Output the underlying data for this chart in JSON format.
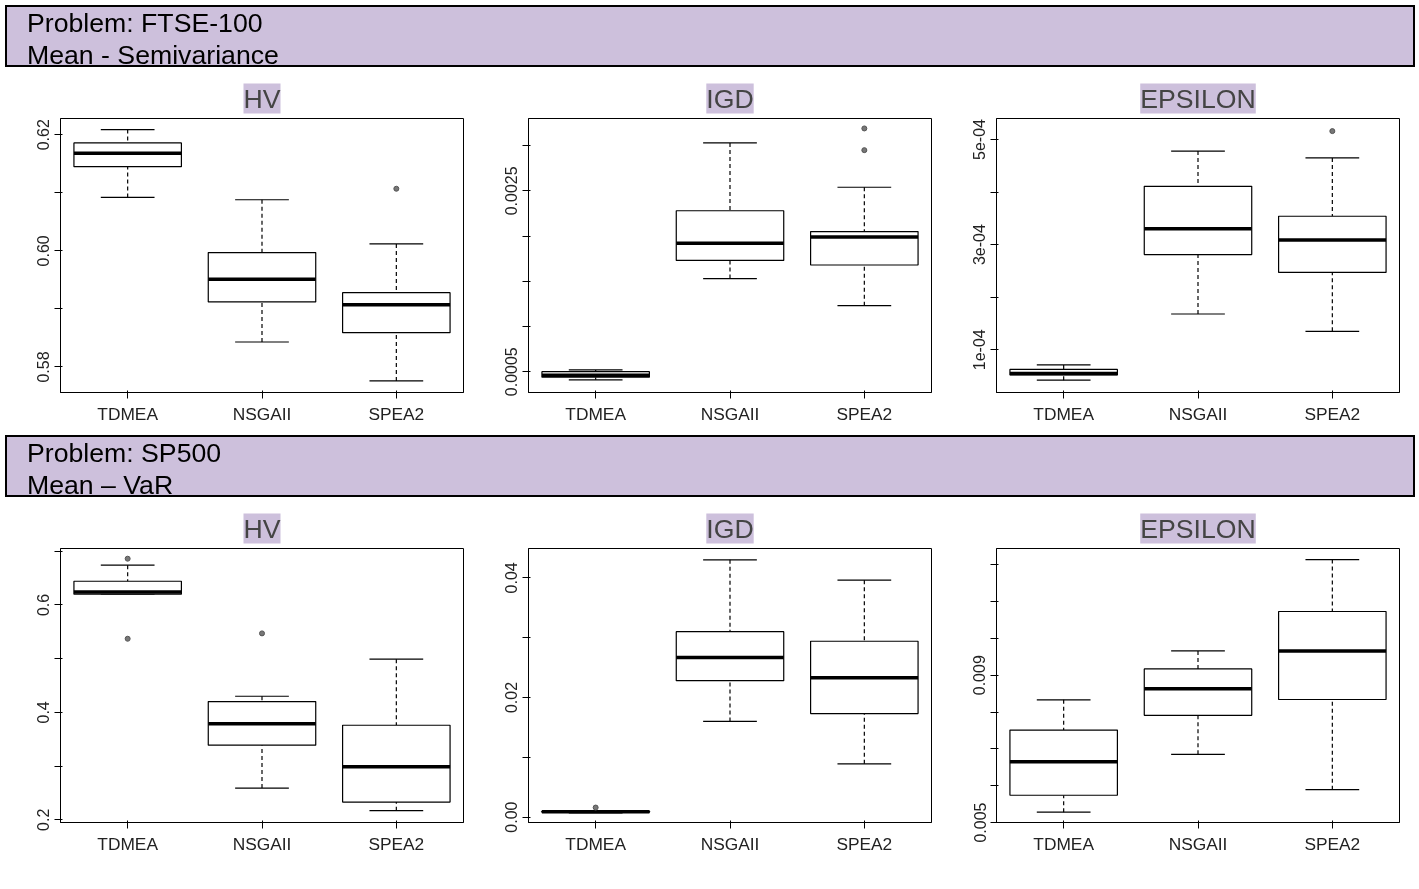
{
  "chart_data": [
    {
      "type": "box",
      "title": "HV",
      "annotations": [
        "Problem: FTSE-100",
        "Mean - Semivariance"
      ],
      "categories": [
        "TDMEA",
        "NSGAII",
        "SPEA2"
      ],
      "ylim": [
        0.5756,
        0.6228
      ],
      "yticks": [
        {
          "value": 0.58,
          "label": "0.58"
        },
        {
          "value": 0.59,
          "label": null
        },
        {
          "value": 0.6,
          "label": "0.60"
        },
        {
          "value": 0.61,
          "label": null
        },
        {
          "value": 0.62,
          "label": "0.62"
        }
      ],
      "boxes": [
        {
          "low": 0.6092,
          "q1": 0.6145,
          "median": 0.6168,
          "q3": 0.6186,
          "high": 0.6209
        },
        {
          "low": 0.5843,
          "q1": 0.5912,
          "median": 0.5951,
          "q3": 0.5997,
          "high": 0.6088
        },
        {
          "low": 0.5776,
          "q1": 0.5859,
          "median": 0.5907,
          "q3": 0.5928,
          "high": 0.6012,
          "outliers": [
            0.6107
          ]
        }
      ]
    },
    {
      "type": "box",
      "title": "IGD",
      "categories": [
        "TDMEA",
        "NSGAII",
        "SPEA2"
      ],
      "ylim": [
        0.00027,
        0.0033
      ],
      "yticks": [
        {
          "value": 0.0005,
          "label": "0.0005"
        },
        {
          "value": 0.001,
          "label": null
        },
        {
          "value": 0.0015,
          "label": null
        },
        {
          "value": 0.002,
          "label": null
        },
        {
          "value": 0.0025,
          "label": "0.0025"
        },
        {
          "value": 0.003,
          "label": null
        }
      ],
      "boxes": [
        {
          "low": 0.00041,
          "q1": 0.00044,
          "median": 0.00046,
          "q3": 0.0005,
          "high": 0.00052
        },
        {
          "low": 0.00153,
          "q1": 0.00173,
          "median": 0.00192,
          "q3": 0.00228,
          "high": 0.00303
        },
        {
          "low": 0.00123,
          "q1": 0.00168,
          "median": 0.00199,
          "q3": 0.00205,
          "high": 0.00254,
          "outliers": [
            0.00295,
            0.00319
          ]
        }
      ]
    },
    {
      "type": "box",
      "title": "EPSILON",
      "categories": [
        "TDMEA",
        "NSGAII",
        "SPEA2"
      ],
      "ylim": [
        1.86e-05,
        0.00054
      ],
      "yticks": [
        {
          "value": 0.0001,
          "label": "1e-04"
        },
        {
          "value": 0.0002,
          "label": null
        },
        {
          "value": 0.0003,
          "label": "3e-04"
        },
        {
          "value": 0.0004,
          "label": null
        },
        {
          "value": 0.0005,
          "label": "5e-04"
        }
      ],
      "boxes": [
        {
          "low": 4.2e-05,
          "q1": 5.2e-05,
          "median": 5.46e-05,
          "q3": 6.25e-05,
          "high": 7.1e-05
        },
        {
          "low": 0.000168,
          "q1": 0.000281,
          "median": 0.00033,
          "q3": 0.000411,
          "high": 0.000478
        },
        {
          "low": 0.000135,
          "q1": 0.000247,
          "median": 0.000309,
          "q3": 0.000354,
          "high": 0.000465,
          "outliers": [
            0.000516
          ]
        }
      ]
    },
    {
      "type": "box",
      "title": "HV",
      "annotations": [
        "Problem: SP500",
        "Mean – VaR"
      ],
      "categories": [
        "TDMEA",
        "NSGAII",
        "SPEA2"
      ],
      "ylim": [
        0.195,
        0.705
      ],
      "yticks": [
        {
          "value": 0.2,
          "label": "0.2"
        },
        {
          "value": 0.3,
          "label": null
        },
        {
          "value": 0.4,
          "label": "0.4"
        },
        {
          "value": 0.5,
          "label": null
        },
        {
          "value": 0.6,
          "label": "0.6"
        },
        {
          "value": 0.7,
          "label": null
        }
      ],
      "boxes": [
        {
          "low": 0.62,
          "q1": 0.62,
          "median": 0.624,
          "q3": 0.644,
          "high": 0.674,
          "outliers": [
            0.537,
            0.686
          ]
        },
        {
          "low": 0.259,
          "q1": 0.339,
          "median": 0.379,
          "q3": 0.42,
          "high": 0.43,
          "outliers": [
            0.547
          ]
        },
        {
          "low": 0.217,
          "q1": 0.233,
          "median": 0.299,
          "q3": 0.376,
          "high": 0.499
        }
      ]
    },
    {
      "type": "box",
      "title": "IGD",
      "categories": [
        "TDMEA",
        "NSGAII",
        "SPEA2"
      ],
      "ylim": [
        -0.0009,
        0.0449
      ],
      "yticks": [
        {
          "value": 0,
          "label": "0.00"
        },
        {
          "value": 0.01,
          "label": null
        },
        {
          "value": 0.02,
          "label": "0.02"
        },
        {
          "value": 0.03,
          "label": null
        },
        {
          "value": 0.04,
          "label": "0.04"
        }
      ],
      "boxes": [
        {
          "low": 0.0007,
          "q1": 0.0008,
          "median": 0.0009,
          "q3": 0.001,
          "high": 0.0011,
          "outliers": [
            0.0016
          ]
        },
        {
          "low": 0.016,
          "q1": 0.0228,
          "median": 0.0267,
          "q3": 0.031,
          "high": 0.043
        },
        {
          "low": 0.0089,
          "q1": 0.0173,
          "median": 0.0233,
          "q3": 0.0294,
          "high": 0.0396
        }
      ]
    },
    {
      "type": "box",
      "title": "EPSILON",
      "categories": [
        "TDMEA",
        "NSGAII",
        "SPEA2"
      ],
      "ylim": [
        0.005,
        0.01244
      ],
      "yticks": [
        {
          "value": 0.005,
          "label": "0.005"
        },
        {
          "value": 0.006,
          "label": null
        },
        {
          "value": 0.007,
          "label": null
        },
        {
          "value": 0.008,
          "label": null
        },
        {
          "value": 0.009,
          "label": "0.009"
        },
        {
          "value": 0.01,
          "label": null
        },
        {
          "value": 0.011,
          "label": null
        },
        {
          "value": 0.012,
          "label": null
        }
      ],
      "boxes": [
        {
          "low": 0.00528,
          "q1": 0.00574,
          "median": 0.00665,
          "q3": 0.00751,
          "high": 0.00833
        },
        {
          "low": 0.00685,
          "q1": 0.00791,
          "median": 0.00863,
          "q3": 0.00917,
          "high": 0.00966
        },
        {
          "low": 0.00589,
          "q1": 0.00834,
          "median": 0.00966,
          "q3": 0.01073,
          "high": 0.01214
        }
      ]
    }
  ]
}
